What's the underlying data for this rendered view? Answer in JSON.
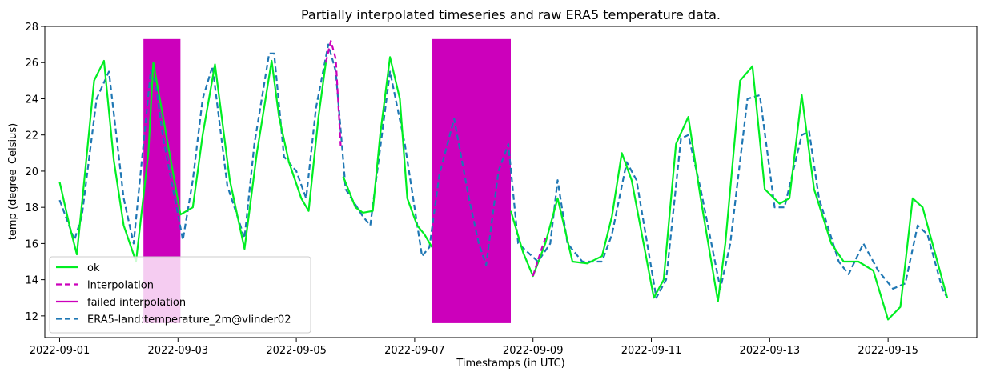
{
  "chart_data": {
    "type": "line",
    "title": "Partially interpolated timeseries and raw ERA5 temperature data.",
    "xlabel": "Timestamps (in UTC)",
    "ylabel": "temp (degree_Celsius)",
    "xlim": [
      "2022-08-31T18:00",
      "2022-09-16T12:00"
    ],
    "ylim": [
      10.8,
      28.0
    ],
    "x_ticks": [
      "2022-09-01",
      "2022-09-03",
      "2022-09-05",
      "2022-09-07",
      "2022-09-09",
      "2022-09-11",
      "2022-09-13",
      "2022-09-15"
    ],
    "y_ticks": [
      12,
      14,
      16,
      18,
      20,
      22,
      24,
      26,
      28
    ],
    "grid": false,
    "legend_position": "lower-left",
    "legend": [
      "ok",
      "interpolation",
      "failed interpolation",
      "ERA5-land:temperature_2m@vlinder02"
    ],
    "colors": {
      "ok": "#00ee22",
      "interpolation": "#cc00bb",
      "failed": "#cc00bb",
      "era5": "#1f77b4"
    },
    "failed_interpolation_regions": [
      {
        "start": "2022-09-02T10:00",
        "end": "2022-09-03T01:00",
        "ymin": 11.6,
        "ymax": 27.3
      },
      {
        "start": "2022-09-07T07:00",
        "end": "2022-09-08T15:00",
        "ymin": 11.6,
        "ymax": 27.3
      }
    ],
    "series": [
      {
        "name": "ERA5-land:temperature_2m@vlinder02",
        "style": "dashed",
        "x": [
          "2022-09-01T00:00",
          "2022-09-01T06:00",
          "2022-09-01T09:00",
          "2022-09-01T15:00",
          "2022-09-01T20:00",
          "2022-09-02T02:00",
          "2022-09-02T06:00",
          "2022-09-02T13:00",
          "2022-09-02T15:00",
          "2022-09-02T18:00",
          "2022-09-03T02:00",
          "2022-09-03T06:00",
          "2022-09-03T10:00",
          "2022-09-03T14:00",
          "2022-09-03T20:00",
          "2022-09-04T03:00",
          "2022-09-04T07:00",
          "2022-09-04T13:00",
          "2022-09-04T15:00",
          "2022-09-04T19:00",
          "2022-09-05T00:00",
          "2022-09-05T04:00",
          "2022-09-05T08:00",
          "2022-09-05T13:00",
          "2022-09-05T16:00",
          "2022-09-05T20:00",
          "2022-09-06T03:00",
          "2022-09-06T06:00",
          "2022-09-06T14:00",
          "2022-09-06T20:00",
          "2022-09-07T03:00",
          "2022-09-07T06:00",
          "2022-09-07T10:00",
          "2022-09-07T16:00",
          "2022-09-07T22:00",
          "2022-09-08T02:00",
          "2022-09-08T05:00",
          "2022-09-08T10:00",
          "2022-09-08T14:00",
          "2022-09-08T18:00",
          "2022-09-09T02:00",
          "2022-09-09T07:00",
          "2022-09-09T10:00",
          "2022-09-09T14:00",
          "2022-09-09T20:00",
          "2022-09-10T04:00",
          "2022-09-10T08:00",
          "2022-09-10T14:00",
          "2022-09-10T18:00",
          "2022-09-11T02:00",
          "2022-09-11T06:00",
          "2022-09-11T12:00",
          "2022-09-11T15:00",
          "2022-09-11T20:00",
          "2022-09-12T04:00",
          "2022-09-12T08:00",
          "2022-09-12T15:00",
          "2022-09-12T20:00",
          "2022-09-13T02:00",
          "2022-09-13T06:00",
          "2022-09-13T13:00",
          "2022-09-13T16:00",
          "2022-09-13T20:00",
          "2022-09-14T04:00",
          "2022-09-14T08:00",
          "2022-09-14T14:00",
          "2022-09-14T20:00",
          "2022-09-15T02:00",
          "2022-09-15T07:00",
          "2022-09-15T12:00",
          "2022-09-15T16:00",
          "2022-09-15T22:00",
          "2022-09-16T00:00"
        ],
        "values": [
          18.4,
          16.2,
          17.5,
          24.0,
          25.5,
          18.5,
          16.0,
          25.6,
          24.8,
          21.8,
          16.2,
          19.5,
          24.0,
          25.8,
          19.2,
          16.3,
          21.5,
          26.5,
          26.5,
          20.8,
          20.0,
          18.5,
          23.5,
          27.0,
          25.5,
          19.0,
          17.5,
          17.0,
          25.5,
          21.5,
          15.3,
          15.8,
          19.8,
          22.9,
          18.5,
          16.0,
          14.8,
          20.0,
          21.5,
          16.0,
          15.0,
          16.0,
          19.5,
          16.0,
          15.0,
          15.0,
          16.5,
          20.5,
          19.5,
          13.0,
          14.0,
          21.8,
          22.0,
          19.0,
          13.5,
          16.0,
          24.0,
          24.2,
          18.0,
          18.0,
          22.0,
          22.2,
          18.5,
          15.0,
          14.3,
          16.0,
          14.5,
          13.5,
          13.8,
          17.0,
          16.5,
          13.5,
          13.0
        ]
      },
      {
        "name": "ok",
        "style": "solid",
        "x": [
          "2022-09-01T00:00",
          "2022-09-01T04:00",
          "2022-09-01T07:00",
          "2022-09-01T10:00",
          "2022-09-01T14:00",
          "2022-09-01T18:00",
          "2022-09-01T22:00",
          "2022-09-02T02:00",
          "2022-09-02T07:00",
          "2022-09-02T12:00",
          "2022-09-02T14:00",
          "2022-09-03T01:00",
          "2022-09-03T06:00",
          "2022-09-03T10:00",
          "2022-09-03T15:00",
          "2022-09-03T21:00",
          "2022-09-04T03:00",
          "2022-09-04T08:00",
          "2022-09-04T14:00",
          "2022-09-04T17:00",
          "2022-09-04T21:00",
          "2022-09-05T02:00",
          "2022-09-05T05:00",
          "2022-09-05T09:00",
          "2022-09-05T12:00"
        ],
        "values": [
          19.4,
          17.0,
          15.4,
          19.5,
          25.0,
          26.1,
          20.6,
          17.0,
          15.0,
          21.0,
          26.0,
          17.6,
          18.0,
          22.0,
          25.9,
          19.5,
          15.7,
          21.0,
          26.1,
          23.0,
          20.5,
          18.5,
          17.8,
          23.0,
          26.0
        ]
      },
      {
        "name": "ok",
        "style": "solid",
        "x": [
          "2022-09-05T19:00",
          "2022-09-06T00:00",
          "2022-09-06T03:00",
          "2022-09-06T07:00",
          "2022-09-06T10:00",
          "2022-09-06T14:00",
          "2022-09-06T18:00",
          "2022-09-06T21:00",
          "2022-09-07T01:00",
          "2022-09-07T04:00",
          "2022-09-07T07:00"
        ],
        "values": [
          19.7,
          18.0,
          17.7,
          17.8,
          22.0,
          26.3,
          24.0,
          18.5,
          17.0,
          16.5,
          15.8
        ]
      },
      {
        "name": "ok",
        "style": "solid",
        "x": [
          "2022-09-08T15:00",
          "2022-09-08T20:00",
          "2022-09-09T00:00",
          "2022-09-09T05:00",
          "2022-09-09T10:00",
          "2022-09-09T16:00",
          "2022-09-09T22:00",
          "2022-09-10T04:00",
          "2022-09-10T08:00",
          "2022-09-10T12:00",
          "2022-09-10T16:00",
          "2022-09-11T01:00",
          "2022-09-11T05:00",
          "2022-09-11T10:00",
          "2022-09-11T15:00",
          "2022-09-11T20:00",
          "2022-09-12T03:00",
          "2022-09-12T06:00",
          "2022-09-12T12:00",
          "2022-09-12T17:00",
          "2022-09-12T22:00",
          "2022-09-13T04:00",
          "2022-09-13T08:00",
          "2022-09-13T13:00",
          "2022-09-13T18:00",
          "2022-09-14T01:00",
          "2022-09-14T06:00",
          "2022-09-14T12:00",
          "2022-09-14T18:00",
          "2022-09-15T00:00",
          "2022-09-15T05:00",
          "2022-09-15T10:00",
          "2022-09-15T14:00",
          "2022-09-15T20:00",
          "2022-09-16T00:00"
        ],
        "values": [
          17.8,
          15.5,
          14.2,
          16.0,
          18.5,
          15.0,
          14.9,
          15.3,
          17.5,
          21.0,
          19.5,
          13.0,
          14.0,
          21.5,
          23.0,
          18.5,
          12.8,
          16.0,
          25.0,
          25.8,
          19.0,
          18.2,
          18.5,
          24.2,
          19.0,
          16.0,
          15.0,
          15.0,
          14.5,
          11.8,
          12.5,
          18.5,
          18.0,
          15.0,
          13.0
        ]
      },
      {
        "name": "interpolation",
        "style": "dashed",
        "x": [
          "2022-09-05T12:00",
          "2022-09-05T14:00",
          "2022-09-05T16:00",
          "2022-09-05T18:00"
        ],
        "values": [
          26.0,
          27.2,
          26.2,
          21.4
        ]
      },
      {
        "name": "interpolation",
        "style": "dashed",
        "x": [
          "2022-09-09T00:00",
          "2022-09-09T03:00",
          "2022-09-09T05:00"
        ],
        "values": [
          14.2,
          15.5,
          16.3
        ]
      }
    ]
  }
}
